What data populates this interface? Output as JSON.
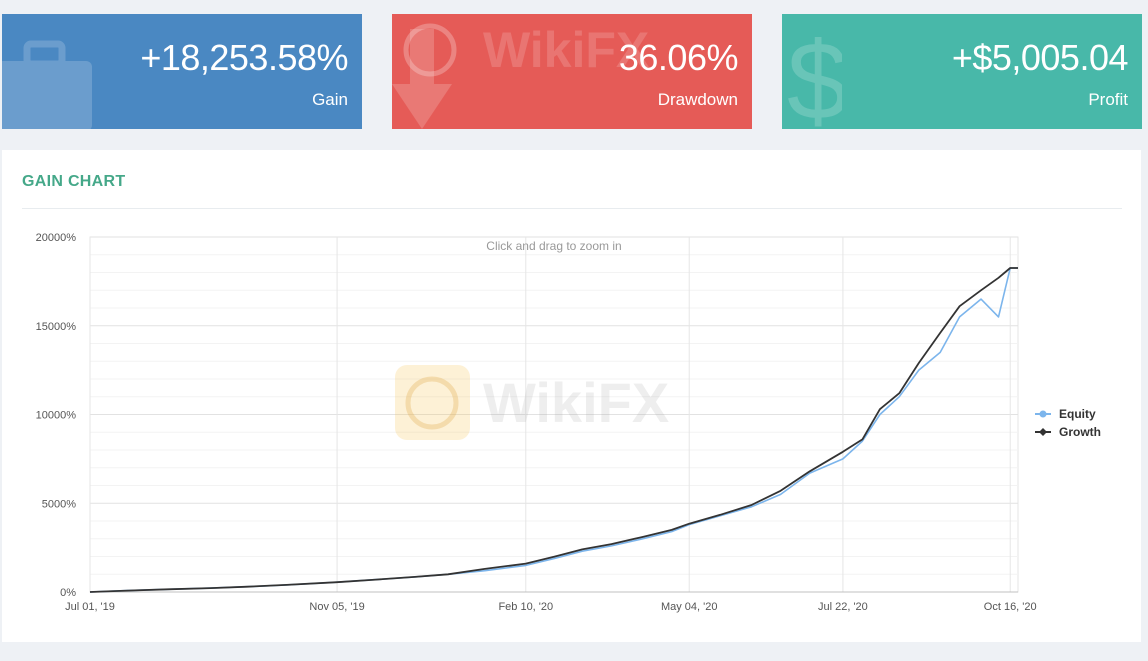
{
  "stats": {
    "gain": {
      "value": "+18,253.58%",
      "label": "Gain",
      "color": "#4a88c2"
    },
    "drawdown": {
      "value": "36.06%",
      "label": "Drawdown",
      "color": "#e55b57"
    },
    "profit": {
      "value": "+$5,005.04",
      "label": "Profit",
      "color": "#48b8a9"
    }
  },
  "panel": {
    "title": "GAIN CHART",
    "zoom_hint": "Click and drag to zoom in"
  },
  "watermark": {
    "text": "WikiFX"
  },
  "chart_data": {
    "type": "line",
    "title": "",
    "xlabel": "",
    "ylabel": "",
    "x_ticks": [
      "Jul 01, '19",
      "Nov 05, '19",
      "Feb 10, '20",
      "May 04, '20",
      "Jul 22, '20",
      "Oct 16, '20"
    ],
    "y_ticks": [
      "0%",
      "5000%",
      "10000%",
      "15000%",
      "20000%"
    ],
    "ylim": [
      0,
      20000
    ],
    "grid": true,
    "legend_position": "right",
    "x": [
      "2019-07-01",
      "2019-07-20",
      "2019-08-10",
      "2019-09-01",
      "2019-09-20",
      "2019-10-10",
      "2019-11-05",
      "2019-11-25",
      "2019-12-15",
      "2020-01-01",
      "2020-01-20",
      "2020-02-10",
      "2020-02-25",
      "2020-03-10",
      "2020-03-25",
      "2020-04-10",
      "2020-04-25",
      "2020-05-04",
      "2020-05-20",
      "2020-06-05",
      "2020-06-20",
      "2020-07-05",
      "2020-07-22",
      "2020-08-01",
      "2020-08-10",
      "2020-08-20",
      "2020-08-30",
      "2020-09-10",
      "2020-09-20",
      "2020-10-01",
      "2020-10-10",
      "2020-10-16",
      "2020-10-20"
    ],
    "series": [
      {
        "name": "Equity",
        "color": "#7cb5ec",
        "values": [
          0,
          80,
          150,
          220,
          300,
          400,
          550,
          700,
          850,
          1000,
          1200,
          1500,
          1900,
          2300,
          2600,
          3000,
          3400,
          3800,
          4300,
          4800,
          5500,
          6700,
          7500,
          8500,
          10000,
          11000,
          12500,
          13500,
          15500,
          16500,
          15500,
          18250,
          18250
        ]
      },
      {
        "name": "Growth",
        "color": "#333333",
        "values": [
          0,
          80,
          150,
          220,
          300,
          400,
          550,
          700,
          850,
          1000,
          1300,
          1600,
          2000,
          2400,
          2700,
          3100,
          3500,
          3850,
          4350,
          4900,
          5700,
          6800,
          7900,
          8600,
          10300,
          11200,
          12900,
          14600,
          16100,
          17000,
          17700,
          18254,
          18254
        ]
      }
    ]
  }
}
